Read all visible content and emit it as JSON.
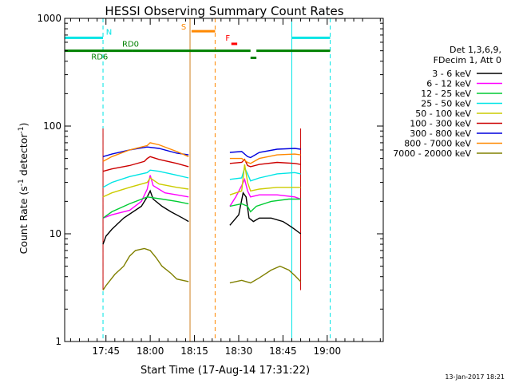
{
  "chart_data": {
    "type": "line",
    "title": "HESSI Observing Summary Count Rates",
    "xlabel": "Start Time (17-Aug-14 17:31:22)",
    "ylabel_main": "Count Rate (s",
    "ylabel_sup1": "-1",
    "ylabel_mid": " detector",
    "ylabel_sup2": "-1",
    "ylabel_end": ")",
    "yscale": "log",
    "xlim_min": [
      0,
      108
    ],
    "ylim": [
      1,
      1000
    ],
    "xticks": [
      {
        "m": 14,
        "label": "17:45"
      },
      {
        "m": 29,
        "label": "18:00"
      },
      {
        "m": 44,
        "label": "18:15"
      },
      {
        "m": 59,
        "label": "18:30"
      },
      {
        "m": 74,
        "label": "18:45"
      },
      {
        "m": 89,
        "label": "19:00"
      }
    ],
    "yticks": [
      {
        "v": 1,
        "label": "1"
      },
      {
        "v": 10,
        "label": "10"
      },
      {
        "v": 100,
        "label": "100"
      },
      {
        "v": 1000,
        "label": "1000"
      }
    ],
    "legend_header": [
      "Det 1,3,6,9,",
      "FDecim 1, Att 0"
    ],
    "series": [
      {
        "name": "3 - 6 keV",
        "color": "#000000",
        "points": [
          [
            13,
            8
          ],
          [
            14,
            9.5
          ],
          [
            16,
            11
          ],
          [
            20,
            14
          ],
          [
            26,
            18
          ],
          [
            28,
            22
          ],
          [
            29,
            25
          ],
          [
            30,
            21
          ],
          [
            33,
            18
          ],
          [
            36,
            16
          ],
          [
            40,
            14
          ],
          [
            42,
            13
          ],
          [
            56,
            12
          ],
          [
            59,
            15
          ],
          [
            60.5,
            24
          ],
          [
            61.5,
            22
          ],
          [
            62.5,
            14
          ],
          [
            64,
            13
          ],
          [
            66,
            14
          ],
          [
            70,
            14
          ],
          [
            74,
            13
          ],
          [
            76,
            12
          ],
          [
            78,
            11
          ],
          [
            80,
            10
          ]
        ]
      },
      {
        "name": "6 - 12 keV",
        "color": "#ff00ff",
        "points": [
          [
            13,
            14
          ],
          [
            16,
            15
          ],
          [
            22,
            16.5
          ],
          [
            26,
            20
          ],
          [
            28,
            26
          ],
          [
            29,
            35
          ],
          [
            30,
            28
          ],
          [
            34,
            24
          ],
          [
            38,
            23
          ],
          [
            42,
            22
          ],
          [
            56,
            18
          ],
          [
            58,
            22
          ],
          [
            60,
            28
          ],
          [
            61,
            32
          ],
          [
            62,
            25
          ],
          [
            63,
            22
          ],
          [
            66,
            23
          ],
          [
            72,
            23
          ],
          [
            78,
            22
          ],
          [
            80,
            21
          ]
        ]
      },
      {
        "name": "12 - 25 keV",
        "color": "#00cc33",
        "points": [
          [
            13,
            14
          ],
          [
            16,
            16
          ],
          [
            22,
            19
          ],
          [
            28,
            22
          ],
          [
            33,
            21
          ],
          [
            38,
            20
          ],
          [
            42,
            19
          ],
          [
            56,
            18
          ],
          [
            60,
            19
          ],
          [
            62,
            18
          ],
          [
            63,
            16
          ],
          [
            65,
            18
          ],
          [
            70,
            20
          ],
          [
            76,
            21
          ],
          [
            80,
            21
          ]
        ]
      },
      {
        "name": "25 - 50 keV",
        "color": "#00e5e5",
        "points": [
          [
            13,
            27
          ],
          [
            16,
            30
          ],
          [
            22,
            34
          ],
          [
            28,
            37
          ],
          [
            29,
            39
          ],
          [
            32,
            38
          ],
          [
            38,
            35
          ],
          [
            42,
            33
          ],
          [
            56,
            32
          ],
          [
            60,
            33
          ],
          [
            61,
            41
          ],
          [
            62,
            36
          ],
          [
            63,
            31
          ],
          [
            66,
            33
          ],
          [
            72,
            36
          ],
          [
            78,
            37
          ],
          [
            80,
            36
          ]
        ]
      },
      {
        "name": "50 - 100 keV",
        "color": "#cccc00",
        "points": [
          [
            13,
            22
          ],
          [
            16,
            24
          ],
          [
            22,
            27
          ],
          [
            28,
            30
          ],
          [
            29,
            33
          ],
          [
            32,
            29
          ],
          [
            38,
            27
          ],
          [
            42,
            26
          ],
          [
            56,
            23
          ],
          [
            60,
            25
          ],
          [
            61,
            44
          ],
          [
            62,
            30
          ],
          [
            63,
            25
          ],
          [
            66,
            26
          ],
          [
            72,
            27
          ],
          [
            78,
            27
          ],
          [
            80,
            27
          ]
        ]
      },
      {
        "name": "100 - 300 keV",
        "color": "#cc0000",
        "points": [
          [
            13,
            38
          ],
          [
            16,
            40
          ],
          [
            22,
            43
          ],
          [
            27,
            47
          ],
          [
            28,
            50
          ],
          [
            29,
            52
          ],
          [
            32,
            49
          ],
          [
            38,
            45
          ],
          [
            42,
            42
          ],
          [
            56,
            45
          ],
          [
            60,
            46
          ],
          [
            61,
            49
          ],
          [
            62,
            43
          ],
          [
            63,
            42
          ],
          [
            66,
            44
          ],
          [
            72,
            46
          ],
          [
            78,
            45
          ],
          [
            80,
            44
          ]
        ]
      },
      {
        "name": "300 - 800 keV",
        "color": "#0000dd",
        "points": [
          [
            13,
            52
          ],
          [
            16,
            55
          ],
          [
            22,
            60
          ],
          [
            28,
            64
          ],
          [
            32,
            62
          ],
          [
            38,
            56
          ],
          [
            42,
            54
          ],
          [
            56,
            57
          ],
          [
            60,
            58
          ],
          [
            62,
            52
          ],
          [
            63,
            51
          ],
          [
            66,
            57
          ],
          [
            72,
            61
          ],
          [
            78,
            62
          ],
          [
            80,
            61
          ]
        ]
      },
      {
        "name": "800 - 7000 keV",
        "color": "#ff8800",
        "points": [
          [
            13,
            47
          ],
          [
            16,
            52
          ],
          [
            22,
            60
          ],
          [
            28,
            66
          ],
          [
            29,
            70
          ],
          [
            32,
            67
          ],
          [
            38,
            58
          ],
          [
            42,
            52
          ],
          [
            56,
            50
          ],
          [
            60,
            50
          ],
          [
            62,
            46
          ],
          [
            63,
            45
          ],
          [
            66,
            50
          ],
          [
            72,
            54
          ],
          [
            78,
            55
          ],
          [
            80,
            54
          ]
        ]
      },
      {
        "name": "7000 - 20000 keV",
        "color": "#808000",
        "points": [
          [
            13,
            3
          ],
          [
            14,
            3.3
          ],
          [
            17,
            4.2
          ],
          [
            20,
            5
          ],
          [
            22,
            6.2
          ],
          [
            24,
            7
          ],
          [
            27,
            7.3
          ],
          [
            29,
            7
          ],
          [
            31,
            6
          ],
          [
            33,
            5
          ],
          [
            36,
            4.3
          ],
          [
            38,
            3.8
          ],
          [
            42,
            3.6
          ],
          [
            56,
            3.5
          ],
          [
            60,
            3.7
          ],
          [
            63,
            3.5
          ],
          [
            66,
            3.9
          ],
          [
            70,
            4.6
          ],
          [
            73,
            5
          ],
          [
            76,
            4.6
          ],
          [
            78,
            4.1
          ],
          [
            80,
            3.6
          ]
        ]
      }
    ],
    "vlines": [
      {
        "m": 0,
        "color": "#00e5e5",
        "style": "solid"
      },
      {
        "m": 13,
        "color": "#00e5e5",
        "style": "dashed"
      },
      {
        "m": 77,
        "color": "#00e5e5",
        "style": "solid"
      },
      {
        "m": 90,
        "color": "#00e5e5",
        "style": "dashed"
      },
      {
        "m": 42.5,
        "color": "#d08020",
        "style": "solid"
      },
      {
        "m": 51,
        "color": "#ff8800",
        "style": "dashed"
      },
      {
        "m": 13,
        "color": "#cc0000",
        "style": "solid",
        "from": 3,
        "to": 95
      },
      {
        "m": 80,
        "color": "#cc0000",
        "style": "solid",
        "from": 3,
        "to": 95
      }
    ],
    "flag_bars": [
      {
        "x1": 0,
        "x2": 13,
        "y": 660,
        "color": "#00e5e5",
        "label": "N",
        "label_at": 14
      },
      {
        "x1": 77,
        "x2": 90,
        "y": 660,
        "color": "#00e5e5"
      },
      {
        "x1": 43,
        "x2": 51,
        "y": 760,
        "color": "#ff8800",
        "label": "S",
        "label_at": 39.5
      },
      {
        "x1": 0,
        "x2": 23,
        "y": 500,
        "color": "#008000",
        "label": "RD6",
        "label_at": 9
      },
      {
        "x1": 23,
        "x2": 63,
        "y": 500,
        "color": "#008000"
      },
      {
        "x1": 63,
        "x2": 65,
        "y": 430,
        "color": "#008000"
      },
      {
        "x1": 65,
        "x2": 90,
        "y": 500,
        "color": "#008000"
      },
      {
        "x1": 56.5,
        "x2": 58.5,
        "y": 580,
        "color": "#ff0000",
        "label": "F",
        "label_at": 54.5
      }
    ],
    "rd0_label": {
      "text": "RD0",
      "m": 19.5,
      "v": 545
    },
    "timestamp": "13-Jan-2017 18:21"
  }
}
